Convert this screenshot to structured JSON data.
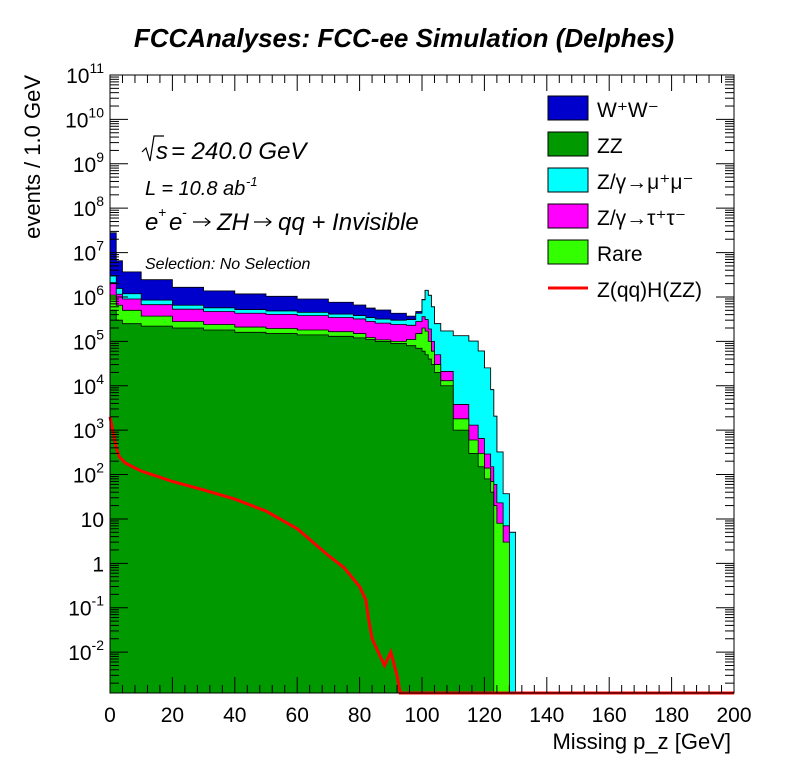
{
  "chart_data": {
    "type": "area",
    "title": "FCCAnalyses: FCC-ee Simulation (Delphes)",
    "xlabel": "Missing p_z [GeV]",
    "ylabel": "events / 1.0 GeV",
    "xlim": [
      0,
      200
    ],
    "ylim": [
      0.0012,
      100000000000
    ],
    "yscale": "log",
    "stacked": true,
    "legend_position": "top-right",
    "annotations": {
      "sqrt_s": "= 240.0 GeV",
      "lumi": "L = 10.8 ab",
      "lumi_exp": "-1",
      "process": "qq + Invisible",
      "selection": "Selection: No Selection"
    },
    "x_ticks": [
      "0",
      "20",
      "40",
      "60",
      "80",
      "100",
      "120",
      "140",
      "160",
      "180",
      "200"
    ],
    "y_ticks": [
      "10^11",
      "10^10",
      "10^9",
      "10^8",
      "10^7",
      "10^6",
      "10^5",
      "10^4",
      "10^3",
      "10^2",
      "10",
      "1",
      "10^-1",
      "10^-2"
    ],
    "x": [
      0,
      2,
      4,
      10,
      20,
      30,
      40,
      50,
      60,
      70,
      78,
      82,
      85,
      90,
      95,
      98,
      100,
      101,
      102,
      103,
      104,
      106,
      110,
      115,
      118,
      120,
      122,
      123,
      124,
      126,
      128,
      130
    ],
    "series": [
      {
        "name": "ZZ",
        "color": "#009900",
        "values": [
          500000,
          300000,
          250000,
          220000,
          200000,
          180000,
          160000,
          150000,
          140000,
          130000,
          120000,
          110000,
          100000,
          90000,
          80000,
          70000,
          60000,
          50000,
          40000,
          30000,
          20000,
          10000,
          1000,
          300,
          150,
          80,
          40,
          0,
          0,
          0,
          0,
          0
        ]
      },
      {
        "name": "Rare",
        "color": "#33ff00",
        "values": [
          600000,
          350000,
          250000,
          150000,
          80000,
          60000,
          50000,
          45000,
          40000,
          35000,
          30000,
          12000,
          8000,
          10000,
          30000,
          80000,
          140000,
          120000,
          60000,
          30000,
          10000,
          3000,
          800,
          300,
          150,
          60,
          30,
          20,
          8,
          3,
          0,
          0
        ]
      },
      {
        "name": "Z/γ→τ⁺τ⁻",
        "color": "#ff00ff",
        "values": [
          1000000,
          500000,
          400000,
          300000,
          250000,
          230000,
          220000,
          210000,
          200000,
          180000,
          170000,
          160000,
          150000,
          140000,
          120000,
          130000,
          160000,
          140000,
          90000,
          40000,
          20000,
          8000,
          2000,
          700,
          350,
          150,
          80,
          40,
          15,
          4,
          0,
          0
        ]
      },
      {
        "name": "Z/γ→μ⁺μ⁻",
        "color": "#00ffff",
        "values": [
          900000,
          400000,
          280000,
          180000,
          120000,
          100000,
          90000,
          80000,
          70000,
          65000,
          60000,
          60000,
          60000,
          60000,
          80000,
          150000,
          500000,
          1100000,
          900000,
          500000,
          200000,
          150000,
          130000,
          100000,
          60000,
          25000,
          8000,
          2000,
          300,
          30,
          5,
          0
        ]
      },
      {
        "name": "W⁺W⁻",
        "color": "#0000cc",
        "values": [
          25000000,
          5000000,
          2500000,
          1600000,
          1000000,
          800000,
          650000,
          550000,
          450000,
          350000,
          280000,
          220000,
          190000,
          130000,
          60000,
          40000,
          20000,
          5000,
          2000,
          1000,
          500,
          200,
          50,
          20,
          10,
          5,
          2,
          1,
          0,
          0,
          0,
          0
        ]
      }
    ],
    "signal": {
      "name": "Z(qq)H(ZZ)",
      "color": "#ff0000",
      "x": [
        0,
        1,
        2,
        3,
        5,
        10,
        20,
        30,
        40,
        50,
        60,
        65,
        70,
        75,
        80,
        82,
        83,
        84,
        86,
        88,
        90,
        92,
        93,
        95,
        100,
        120,
        140,
        160,
        180,
        200
      ],
      "values": [
        2000,
        900,
        400,
        250,
        180,
        120,
        70,
        45,
        28,
        15,
        6,
        3,
        1.5,
        0.8,
        0.3,
        0.15,
        0.05,
        0.02,
        0.01,
        0.005,
        0.01,
        0.003,
        0.0012,
        0.0012,
        0.0012,
        0.0012,
        0.0012,
        0.0012,
        0.0012,
        0.0012
      ]
    }
  }
}
